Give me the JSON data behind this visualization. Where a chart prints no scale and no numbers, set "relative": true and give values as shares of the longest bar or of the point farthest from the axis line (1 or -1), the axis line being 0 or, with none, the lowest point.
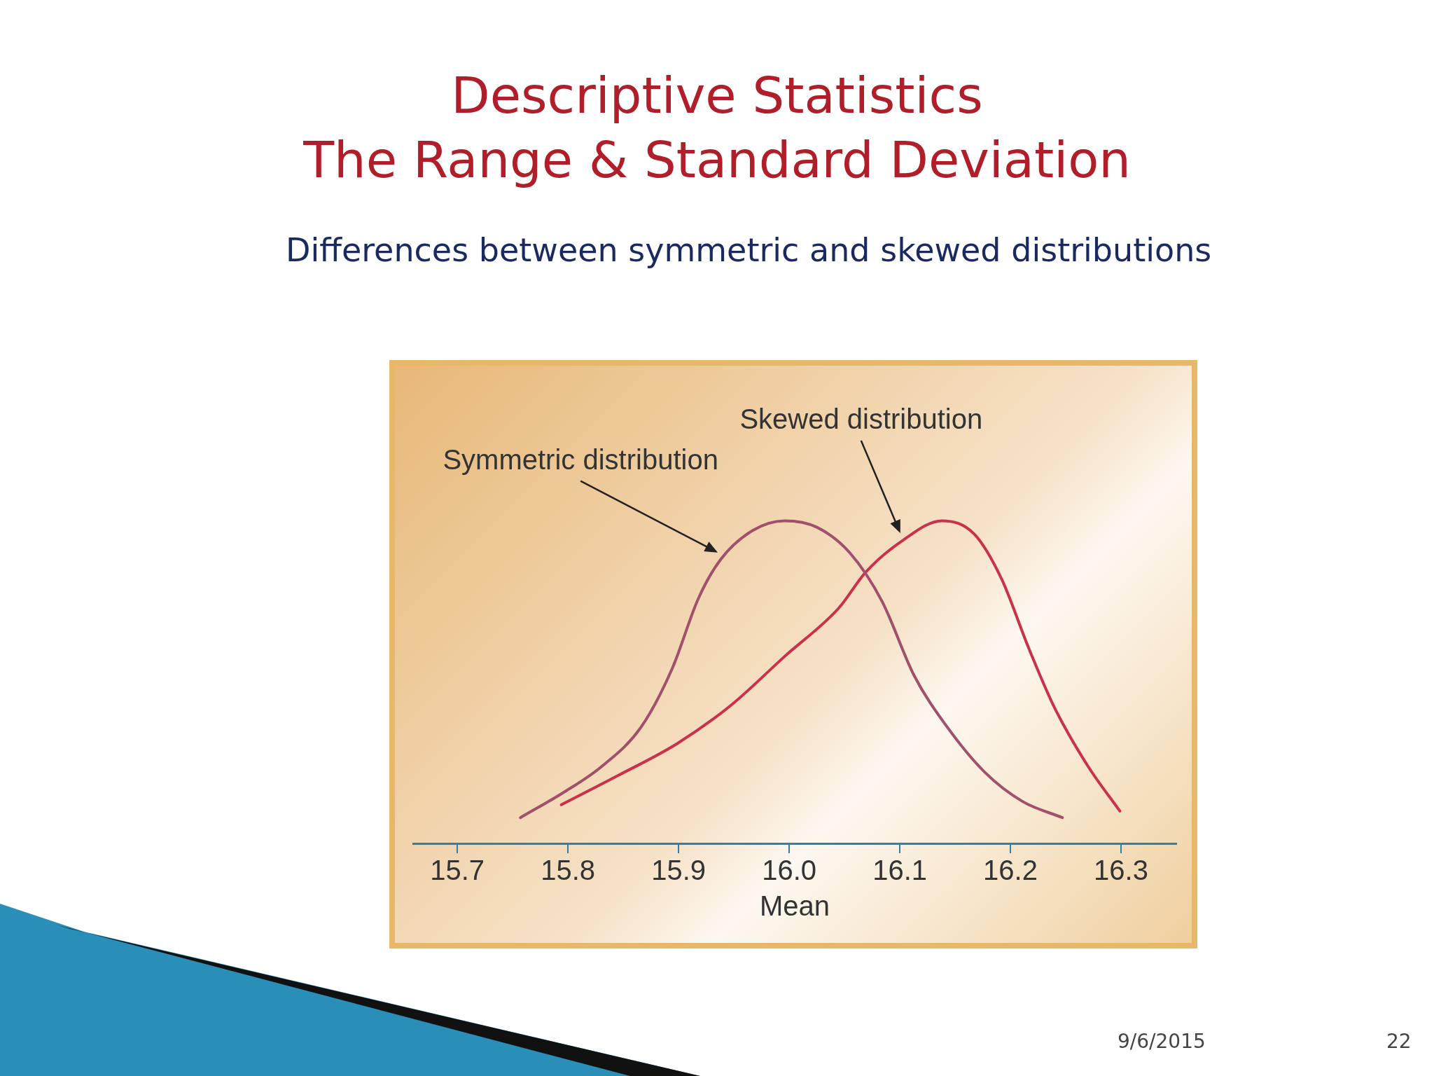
{
  "chart_data": {
    "type": "line",
    "title": "Descriptive Statistics\nThe Range & Standard Deviation",
    "subtitle": "Differences between symmetric and skewed distributions",
    "xlabel": "Mean",
    "relative": true,
    "grid": false,
    "legend": false,
    "marker": "none",
    "line_style": "solid",
    "tick_labels": "x",
    "xlim": [
      15.66,
      16.35
    ],
    "xticks": [
      15.7,
      15.8,
      15.9,
      {
        "value": 16,
        "label": "16.0"
      },
      16.1,
      16.2,
      16.3
    ],
    "annotations": [
      "9/6/2015",
      "22"
    ],
    "series": [
      {
        "name": "Symmetric distribution",
        "color": "#a0506a",
        "x": [
          15.757,
          15.797,
          15.831,
          15.866,
          15.894,
          15.918,
          15.938,
          15.967,
          15.996,
          16.025,
          16.055,
          16.084,
          16.113,
          16.143,
          16.177,
          16.211,
          16.247
        ],
        "values": [
          0.08,
          0.16,
          0.24,
          0.36,
          0.54,
          0.76,
          0.88,
          0.97,
          1.0,
          0.98,
          0.9,
          0.75,
          0.52,
          0.36,
          0.22,
          0.13,
          0.08
        ]
      },
      {
        "name": "Skewed distribution",
        "color": "#c8324a",
        "x": [
          15.794,
          15.845,
          15.899,
          15.948,
          15.996,
          16.045,
          16.069,
          16.103,
          16.138,
          16.167,
          16.192,
          16.216,
          16.24,
          16.27,
          16.299
        ],
        "values": [
          0.12,
          0.21,
          0.31,
          0.43,
          0.58,
          0.73,
          0.84,
          0.94,
          1.0,
          0.96,
          0.82,
          0.61,
          0.42,
          0.24,
          0.1
        ]
      }
    ]
  }
}
